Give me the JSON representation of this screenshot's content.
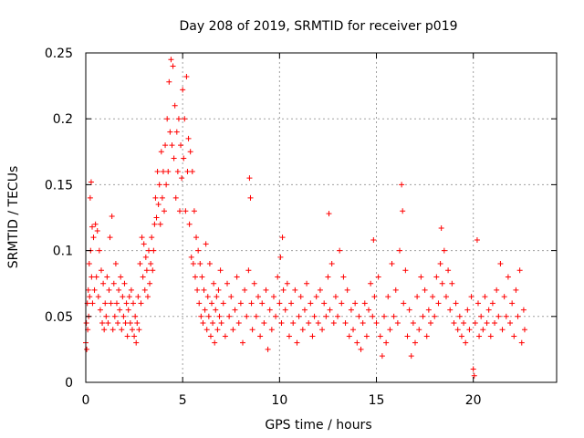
{
  "chart_data": {
    "type": "scatter",
    "title": "Day 208 of 2019, SRMTID for receiver p019",
    "xlabel": "GPS time / hours",
    "ylabel": "SRMTID / TECUs",
    "xlim": [
      0,
      24.3
    ],
    "ylim": [
      0,
      0.25
    ],
    "xticks": [
      0,
      5,
      10,
      15,
      20
    ],
    "xtick_labels": [
      "0",
      "5",
      "10",
      "15",
      "20"
    ],
    "yticks": [
      0,
      0.05,
      0.1,
      0.15,
      0.2,
      0.25
    ],
    "ytick_labels": [
      "0",
      "0.05",
      "0.1",
      "0.15",
      "0.2",
      "0.25"
    ],
    "grid": true,
    "marker": "+",
    "color": "#ff0000",
    "series": [
      {
        "name": "SRMTID",
        "points": [
          [
            0.0,
            0.03
          ],
          [
            0.03,
            0.045
          ],
          [
            0.05,
            0.025
          ],
          [
            0.08,
            0.06
          ],
          [
            0.1,
            0.04
          ],
          [
            0.13,
            0.07
          ],
          [
            0.15,
            0.05
          ],
          [
            0.18,
            0.09
          ],
          [
            0.2,
            0.065
          ],
          [
            0.23,
            0.14
          ],
          [
            0.25,
            0.1
          ],
          [
            0.28,
            0.152
          ],
          [
            0.3,
            0.08
          ],
          [
            0.33,
            0.118
          ],
          [
            0.35,
            0.06
          ],
          [
            0.4,
            0.11
          ],
          [
            0.45,
            0.07
          ],
          [
            0.5,
            0.12
          ],
          [
            0.55,
            0.08
          ],
          [
            0.6,
            0.115
          ],
          [
            0.65,
            0.065
          ],
          [
            0.7,
            0.1
          ],
          [
            0.75,
            0.055
          ],
          [
            0.8,
            0.085
          ],
          [
            0.85,
            0.045
          ],
          [
            0.9,
            0.075
          ],
          [
            0.95,
            0.04
          ],
          [
            1.0,
            0.06
          ],
          [
            1.05,
            0.05
          ],
          [
            1.1,
            0.08
          ],
          [
            1.15,
            0.045
          ],
          [
            1.2,
            0.07
          ],
          [
            1.25,
            0.11
          ],
          [
            1.3,
            0.06
          ],
          [
            1.35,
            0.126
          ],
          [
            1.4,
            0.04
          ],
          [
            1.45,
            0.075
          ],
          [
            1.5,
            0.05
          ],
          [
            1.55,
            0.09
          ],
          [
            1.6,
            0.06
          ],
          [
            1.65,
            0.045
          ],
          [
            1.7,
            0.07
          ],
          [
            1.75,
            0.055
          ],
          [
            1.8,
            0.08
          ],
          [
            1.85,
            0.04
          ],
          [
            1.9,
            0.065
          ],
          [
            1.95,
            0.05
          ],
          [
            2.0,
            0.075
          ],
          [
            2.05,
            0.045
          ],
          [
            2.1,
            0.06
          ],
          [
            2.15,
            0.035
          ],
          [
            2.2,
            0.055
          ],
          [
            2.25,
            0.065
          ],
          [
            2.3,
            0.045
          ],
          [
            2.35,
            0.07
          ],
          [
            2.4,
            0.04
          ],
          [
            2.45,
            0.06
          ],
          [
            2.5,
            0.035
          ],
          [
            2.55,
            0.05
          ],
          [
            2.6,
            0.03
          ],
          [
            2.65,
            0.045
          ],
          [
            2.7,
            0.065
          ],
          [
            2.75,
            0.04
          ],
          [
            2.8,
            0.09
          ],
          [
            2.85,
            0.06
          ],
          [
            2.9,
            0.11
          ],
          [
            2.95,
            0.08
          ],
          [
            3.0,
            0.105
          ],
          [
            3.05,
            0.07
          ],
          [
            3.1,
            0.095
          ],
          [
            3.15,
            0.085
          ],
          [
            3.2,
            0.065
          ],
          [
            3.25,
            0.1
          ],
          [
            3.3,
            0.075
          ],
          [
            3.35,
            0.09
          ],
          [
            3.4,
            0.11
          ],
          [
            3.45,
            0.085
          ],
          [
            3.5,
            0.1
          ],
          [
            3.55,
            0.12
          ],
          [
            3.6,
            0.14
          ],
          [
            3.65,
            0.125
          ],
          [
            3.7,
            0.16
          ],
          [
            3.75,
            0.135
          ],
          [
            3.8,
            0.15
          ],
          [
            3.85,
            0.12
          ],
          [
            3.9,
            0.175
          ],
          [
            3.95,
            0.14
          ],
          [
            4.0,
            0.16
          ],
          [
            4.05,
            0.13
          ],
          [
            4.1,
            0.18
          ],
          [
            4.15,
            0.15
          ],
          [
            4.2,
            0.2
          ],
          [
            4.25,
            0.16
          ],
          [
            4.3,
            0.228
          ],
          [
            4.35,
            0.19
          ],
          [
            4.4,
            0.245
          ],
          [
            4.45,
            0.18
          ],
          [
            4.5,
            0.24
          ],
          [
            4.55,
            0.17
          ],
          [
            4.6,
            0.21
          ],
          [
            4.65,
            0.14
          ],
          [
            4.7,
            0.19
          ],
          [
            4.75,
            0.16
          ],
          [
            4.8,
            0.2
          ],
          [
            4.85,
            0.13
          ],
          [
            4.9,
            0.18
          ],
          [
            4.95,
            0.155
          ],
          [
            5.0,
            0.222
          ],
          [
            5.05,
            0.17
          ],
          [
            5.1,
            0.2
          ],
          [
            5.15,
            0.13
          ],
          [
            5.2,
            0.232
          ],
          [
            5.25,
            0.16
          ],
          [
            5.3,
            0.185
          ],
          [
            5.35,
            0.12
          ],
          [
            5.4,
            0.175
          ],
          [
            5.45,
            0.095
          ],
          [
            5.5,
            0.16
          ],
          [
            5.55,
            0.09
          ],
          [
            5.6,
            0.13
          ],
          [
            5.65,
            0.08
          ],
          [
            5.7,
            0.11
          ],
          [
            5.75,
            0.07
          ],
          [
            5.8,
            0.1
          ],
          [
            5.85,
            0.06
          ],
          [
            5.9,
            0.09
          ],
          [
            5.95,
            0.05
          ],
          [
            6.0,
            0.08
          ],
          [
            6.05,
            0.045
          ],
          [
            6.1,
            0.07
          ],
          [
            6.15,
            0.055
          ],
          [
            6.2,
            0.105
          ],
          [
            6.25,
            0.04
          ],
          [
            6.3,
            0.065
          ],
          [
            6.35,
            0.05
          ],
          [
            6.4,
            0.09
          ],
          [
            6.45,
            0.035
          ],
          [
            6.5,
            0.06
          ],
          [
            6.55,
            0.045
          ],
          [
            6.6,
            0.075
          ],
          [
            6.65,
            0.03
          ],
          [
            6.7,
            0.055
          ],
          [
            6.75,
            0.065
          ],
          [
            6.8,
            0.04
          ],
          [
            6.85,
            0.07
          ],
          [
            6.9,
            0.05
          ],
          [
            6.95,
            0.085
          ],
          [
            7.0,
            0.045
          ],
          [
            7.1,
            0.06
          ],
          [
            7.2,
            0.035
          ],
          [
            7.3,
            0.075
          ],
          [
            7.4,
            0.05
          ],
          [
            7.5,
            0.065
          ],
          [
            7.6,
            0.04
          ],
          [
            7.7,
            0.055
          ],
          [
            7.8,
            0.08
          ],
          [
            7.9,
            0.045
          ],
          [
            8.0,
            0.06
          ],
          [
            8.1,
            0.03
          ],
          [
            8.2,
            0.07
          ],
          [
            8.3,
            0.05
          ],
          [
            8.4,
            0.085
          ],
          [
            8.45,
            0.155
          ],
          [
            8.5,
            0.14
          ],
          [
            8.55,
            0.06
          ],
          [
            8.6,
            0.04
          ],
          [
            8.7,
            0.075
          ],
          [
            8.8,
            0.05
          ],
          [
            8.9,
            0.065
          ],
          [
            9.0,
            0.035
          ],
          [
            9.1,
            0.06
          ],
          [
            9.2,
            0.045
          ],
          [
            9.3,
            0.07
          ],
          [
            9.4,
            0.025
          ],
          [
            9.5,
            0.055
          ],
          [
            9.6,
            0.04
          ],
          [
            9.7,
            0.065
          ],
          [
            9.8,
            0.05
          ],
          [
            9.9,
            0.08
          ],
          [
            10.0,
            0.06
          ],
          [
            10.05,
            0.095
          ],
          [
            10.1,
            0.045
          ],
          [
            10.15,
            0.11
          ],
          [
            10.2,
            0.07
          ],
          [
            10.3,
            0.055
          ],
          [
            10.4,
            0.075
          ],
          [
            10.5,
            0.035
          ],
          [
            10.6,
            0.06
          ],
          [
            10.7,
            0.045
          ],
          [
            10.8,
            0.07
          ],
          [
            10.9,
            0.03
          ],
          [
            11.0,
            0.05
          ],
          [
            11.1,
            0.065
          ],
          [
            11.2,
            0.04
          ],
          [
            11.3,
            0.055
          ],
          [
            11.4,
            0.075
          ],
          [
            11.5,
            0.045
          ],
          [
            11.6,
            0.06
          ],
          [
            11.7,
            0.035
          ],
          [
            11.8,
            0.05
          ],
          [
            11.9,
            0.065
          ],
          [
            12.0,
            0.045
          ],
          [
            12.1,
            0.07
          ],
          [
            12.2,
            0.04
          ],
          [
            12.3,
            0.06
          ],
          [
            12.4,
            0.05
          ],
          [
            12.5,
            0.08
          ],
          [
            12.55,
            0.128
          ],
          [
            12.6,
            0.055
          ],
          [
            12.7,
            0.09
          ],
          [
            12.8,
            0.045
          ],
          [
            12.9,
            0.065
          ],
          [
            13.0,
            0.05
          ],
          [
            13.1,
            0.1
          ],
          [
            13.2,
            0.06
          ],
          [
            13.3,
            0.08
          ],
          [
            13.4,
            0.045
          ],
          [
            13.5,
            0.07
          ],
          [
            13.6,
            0.035
          ],
          [
            13.7,
            0.055
          ],
          [
            13.8,
            0.04
          ],
          [
            13.9,
            0.06
          ],
          [
            14.0,
            0.03
          ],
          [
            14.1,
            0.05
          ],
          [
            14.2,
            0.025
          ],
          [
            14.3,
            0.045
          ],
          [
            14.4,
            0.06
          ],
          [
            14.5,
            0.035
          ],
          [
            14.6,
            0.055
          ],
          [
            14.7,
            0.075
          ],
          [
            14.8,
            0.05
          ],
          [
            14.85,
            0.108
          ],
          [
            14.9,
            0.065
          ],
          [
            15.0,
            0.045
          ],
          [
            15.1,
            0.08
          ],
          [
            15.2,
            0.035
          ],
          [
            15.3,
            0.02
          ],
          [
            15.4,
            0.05
          ],
          [
            15.5,
            0.03
          ],
          [
            15.6,
            0.065
          ],
          [
            15.7,
            0.04
          ],
          [
            15.8,
            0.09
          ],
          [
            15.9,
            0.05
          ],
          [
            16.0,
            0.07
          ],
          [
            16.1,
            0.045
          ],
          [
            16.2,
            0.1
          ],
          [
            16.3,
            0.15
          ],
          [
            16.35,
            0.13
          ],
          [
            16.4,
            0.06
          ],
          [
            16.5,
            0.085
          ],
          [
            16.6,
            0.035
          ],
          [
            16.7,
            0.055
          ],
          [
            16.8,
            0.02
          ],
          [
            16.9,
            0.045
          ],
          [
            17.0,
            0.03
          ],
          [
            17.1,
            0.065
          ],
          [
            17.2,
            0.04
          ],
          [
            17.3,
            0.08
          ],
          [
            17.4,
            0.05
          ],
          [
            17.5,
            0.07
          ],
          [
            17.6,
            0.035
          ],
          [
            17.7,
            0.055
          ],
          [
            17.8,
            0.045
          ],
          [
            17.9,
            0.065
          ],
          [
            18.0,
            0.05
          ],
          [
            18.1,
            0.08
          ],
          [
            18.2,
            0.06
          ],
          [
            18.3,
            0.09
          ],
          [
            18.35,
            0.117
          ],
          [
            18.4,
            0.075
          ],
          [
            18.5,
            0.1
          ],
          [
            18.6,
            0.065
          ],
          [
            18.7,
            0.085
          ],
          [
            18.8,
            0.055
          ],
          [
            18.9,
            0.075
          ],
          [
            19.0,
            0.045
          ],
          [
            19.1,
            0.06
          ],
          [
            19.2,
            0.04
          ],
          [
            19.3,
            0.05
          ],
          [
            19.4,
            0.035
          ],
          [
            19.5,
            0.045
          ],
          [
            19.6,
            0.03
          ],
          [
            19.7,
            0.055
          ],
          [
            19.8,
            0.04
          ],
          [
            19.9,
            0.065
          ],
          [
            20.0,
            0.01
          ],
          [
            20.05,
            0.005
          ],
          [
            20.1,
            0.045
          ],
          [
            20.2,
            0.108
          ],
          [
            20.25,
            0.06
          ],
          [
            20.3,
            0.035
          ],
          [
            20.4,
            0.05
          ],
          [
            20.5,
            0.04
          ],
          [
            20.6,
            0.065
          ],
          [
            20.7,
            0.045
          ],
          [
            20.8,
            0.055
          ],
          [
            20.9,
            0.035
          ],
          [
            21.0,
            0.06
          ],
          [
            21.1,
            0.045
          ],
          [
            21.2,
            0.07
          ],
          [
            21.3,
            0.05
          ],
          [
            21.4,
            0.09
          ],
          [
            21.5,
            0.04
          ],
          [
            21.6,
            0.065
          ],
          [
            21.7,
            0.05
          ],
          [
            21.8,
            0.08
          ],
          [
            21.9,
            0.045
          ],
          [
            22.0,
            0.06
          ],
          [
            22.1,
            0.035
          ],
          [
            22.2,
            0.07
          ],
          [
            22.3,
            0.05
          ],
          [
            22.4,
            0.085
          ],
          [
            22.5,
            0.03
          ],
          [
            22.6,
            0.055
          ],
          [
            22.65,
            0.04
          ]
        ]
      }
    ]
  }
}
